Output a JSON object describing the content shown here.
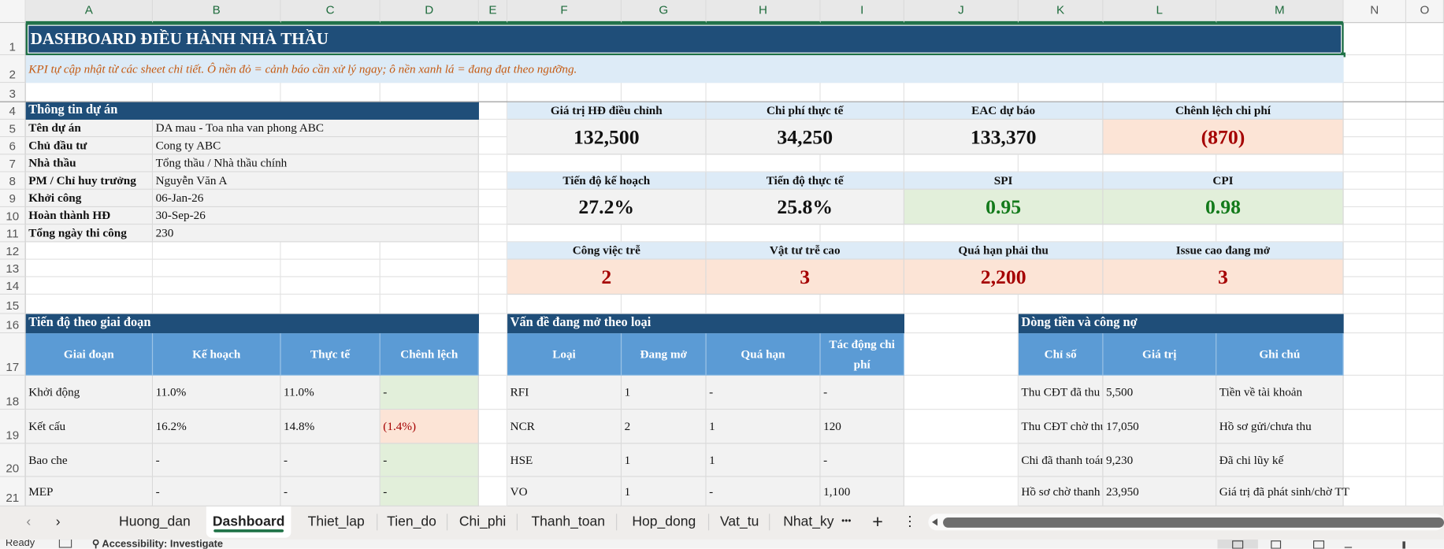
{
  "columns": [
    "A",
    "B",
    "C",
    "D",
    "E",
    "F",
    "G",
    "H",
    "I",
    "J",
    "K",
    "L",
    "M",
    "N",
    "O"
  ],
  "rows": [
    "1",
    "2",
    "3",
    "4",
    "5",
    "6",
    "7",
    "8",
    "9",
    "10",
    "11",
    "12",
    "13",
    "14",
    "15",
    "16",
    "17",
    "18",
    "19",
    "20",
    "21"
  ],
  "title": "DASHBOARD ĐIỀU HÀNH NHÀ THẦU",
  "subtitle": "KPI tự cập nhật từ các sheet chi tiết. Ô nền đỏ = cảnh báo cần xử lý ngay; ô nền xanh lá = đang đạt theo ngưỡng.",
  "project_info": {
    "header": "Thông tin dự án",
    "items": [
      {
        "label": "Tên dự án",
        "value": "DA mau - Toa nha van phong ABC"
      },
      {
        "label": "Chủ đầu tư",
        "value": "Cong ty ABC"
      },
      {
        "label": "Nhà thầu",
        "value": "Tổng thầu / Nhà thầu chính"
      },
      {
        "label": "PM / Chỉ huy trưởng",
        "value": "Nguyễn Văn A"
      },
      {
        "label": "Khởi công",
        "value": "06-Jan-26"
      },
      {
        "label": "Hoàn thành HĐ",
        "value": "30-Sep-26"
      },
      {
        "label": "Tổng ngày thi công",
        "value": "230"
      }
    ]
  },
  "kpi_groups": [
    [
      {
        "label": "Giá trị HĐ điều chỉnh",
        "value": "132,500",
        "status": "neutral"
      },
      {
        "label": "Chi phí thực tế",
        "value": "34,250",
        "status": "neutral"
      },
      {
        "label": "EAC dự báo",
        "value": "133,370",
        "status": "neutral"
      },
      {
        "label": "Chênh lệch chi phí",
        "value": "(870)",
        "status": "alert"
      }
    ],
    [
      {
        "label": "Tiến độ kế hoạch",
        "value": "27.2%",
        "status": "neutral"
      },
      {
        "label": "Tiến độ thực tế",
        "value": "25.8%",
        "status": "neutral"
      },
      {
        "label": "SPI",
        "value": "0.95",
        "status": "ok"
      },
      {
        "label": "CPI",
        "value": "0.98",
        "status": "ok"
      }
    ],
    [
      {
        "label": "Công việc trễ",
        "value": "2",
        "status": "alert"
      },
      {
        "label": "Vật tư trễ cao",
        "value": "3",
        "status": "alert"
      },
      {
        "label": "Quá hạn phải thu",
        "value": "2,200",
        "status": "alert"
      },
      {
        "label": "Issue cao đang mở",
        "value": "3",
        "status": "alert"
      }
    ]
  ],
  "phase_table": {
    "header": "Tiến độ theo giai đoạn",
    "columns": [
      "Giai đoạn",
      "Kế hoạch",
      "Thực tế",
      "Chênh lệch"
    ],
    "rows": [
      {
        "cells": [
          "Khởi động",
          "11.0%",
          "11.0%",
          "-"
        ],
        "status": "ok"
      },
      {
        "cells": [
          "Kết cấu",
          "16.2%",
          "14.8%",
          "(1.4%)"
        ],
        "status": "alert"
      },
      {
        "cells": [
          "Bao che",
          "-",
          "-",
          "-"
        ],
        "status": "ok"
      },
      {
        "cells": [
          "MEP",
          "-",
          "-",
          "-"
        ],
        "status": "ok"
      }
    ]
  },
  "issue_table": {
    "header": "Vấn đề đang mở theo loại",
    "columns": [
      "Loại",
      "Đang mở",
      "Quá hạn",
      "Tác động chi phí"
    ],
    "rows": [
      [
        "RFI",
        "1",
        "-",
        "-"
      ],
      [
        "NCR",
        "2",
        "1",
        "120"
      ],
      [
        "HSE",
        "1",
        "1",
        "-"
      ],
      [
        "VO",
        "1",
        "-",
        "1,100"
      ]
    ]
  },
  "cash_table": {
    "header": "Dòng tiền và công nợ",
    "columns": [
      "Chỉ số",
      "Giá trị",
      "Ghi chú"
    ],
    "rows": [
      [
        "Thu CĐT đã thu",
        "5,500",
        "Tiền về tài khoản"
      ],
      [
        "Thu CĐT chờ thu",
        "17,050",
        "Hồ sơ gửi/chưa thu"
      ],
      [
        "Chi đã thanh toán",
        "9,230",
        "Đã chi lũy kế"
      ],
      [
        "Hồ sơ chờ thanh toán",
        "23,950",
        "Giá trị đã phát sinh/chờ TT"
      ]
    ]
  },
  "sheet_tabs": [
    "Huong_dan",
    "Dashboard",
    "Thiet_lap",
    "Tien_do",
    "Chi_phi",
    "Thanh_toan",
    "Hop_dong",
    "Vat_tu",
    "Nhat_ky"
  ],
  "active_tab": "Dashboard",
  "tab_controls": {
    "prev": "‹",
    "next": "›",
    "more": "•••",
    "add": "+",
    "menu": "⋮"
  },
  "status_bar": {
    "ready": "Ready",
    "accessibility": "Accessibility: Investigate"
  },
  "colors": {
    "header_dark": "#1f4e79",
    "table_header": "#5b9bd5",
    "alert_bg": "#fce4d6",
    "alert_text": "#a50000",
    "ok_bg": "#e2efda",
    "ok_text": "#137a1b",
    "label_bg": "#ddebf7",
    "accent": "#1e7145"
  }
}
